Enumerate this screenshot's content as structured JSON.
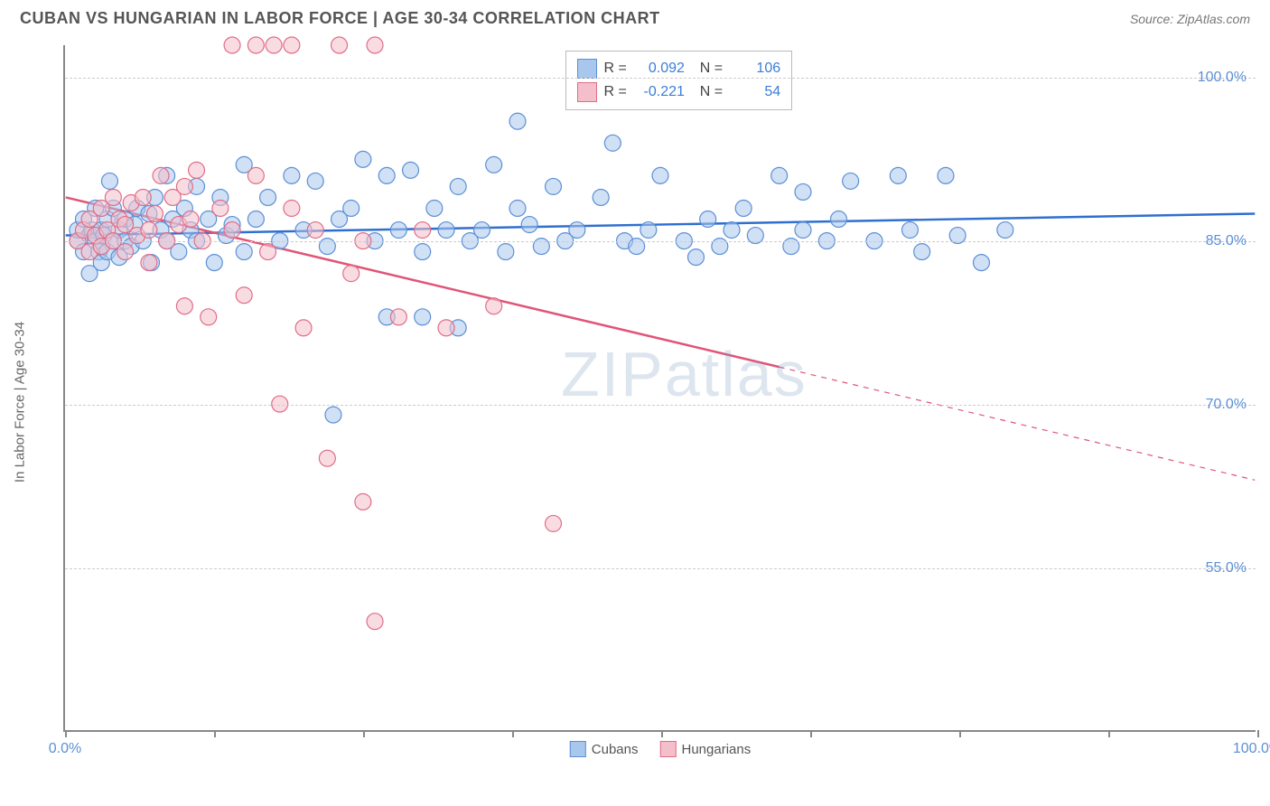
{
  "header": {
    "title": "CUBAN VS HUNGARIAN IN LABOR FORCE | AGE 30-34 CORRELATION CHART",
    "source": "Source: ZipAtlas.com"
  },
  "watermark": {
    "bold": "ZIP",
    "light": "atlas"
  },
  "chart": {
    "type": "scatter",
    "background_color": "#ffffff",
    "axis_color": "#888888",
    "grid_color": "#cccccc",
    "grid_dashed": true,
    "y_axis_label": "In Labor Force | Age 30-34",
    "label_color": "#666666",
    "label_fontsize": 15,
    "tick_label_color": "#5b8fd6",
    "tick_label_fontsize": 16,
    "xlim": [
      0,
      100
    ],
    "ylim": [
      40,
      103
    ],
    "x_ticks": [
      0,
      12.5,
      25,
      37.5,
      50,
      62.5,
      75,
      87.5,
      100
    ],
    "x_tick_labels": {
      "0": "0.0%",
      "100": "100.0%"
    },
    "y_ticks": [
      55,
      70,
      85,
      100
    ],
    "y_tick_labels": {
      "55": "55.0%",
      "70": "70.0%",
      "85": "85.0%",
      "100": "100.0%"
    },
    "marker_radius": 9,
    "marker_opacity": 0.55,
    "line_width": 2.5,
    "series": [
      {
        "name": "Cubans",
        "fill": "#a9c7ec",
        "stroke": "#5b8fd6",
        "line_color": "#2f6fd0",
        "R": "0.092",
        "N": "106",
        "trend": {
          "x1": 0,
          "y1": 85.5,
          "x2": 100,
          "y2": 87.5,
          "solid_until_x": 100
        },
        "points": [
          [
            1,
            85
          ],
          [
            1,
            86
          ],
          [
            1.5,
            84
          ],
          [
            1.5,
            87
          ],
          [
            2,
            85.5
          ],
          [
            2,
            82
          ],
          [
            2.2,
            86
          ],
          [
            2.5,
            85
          ],
          [
            2.5,
            88
          ],
          [
            2.8,
            84
          ],
          [
            3,
            86
          ],
          [
            3,
            83
          ],
          [
            3.2,
            85.5
          ],
          [
            3.5,
            87
          ],
          [
            3.5,
            84
          ],
          [
            3.7,
            90.5
          ],
          [
            4,
            85
          ],
          [
            4,
            88
          ],
          [
            4.5,
            86
          ],
          [
            4.5,
            83.5
          ],
          [
            5,
            87
          ],
          [
            5,
            85
          ],
          [
            5.5,
            84.5
          ],
          [
            5.8,
            86.5
          ],
          [
            6,
            88
          ],
          [
            6.5,
            85
          ],
          [
            7,
            87.5
          ],
          [
            7.2,
            83
          ],
          [
            7.5,
            89
          ],
          [
            8,
            86
          ],
          [
            8.5,
            91
          ],
          [
            8.5,
            85
          ],
          [
            9,
            87
          ],
          [
            9.5,
            84
          ],
          [
            10,
            88
          ],
          [
            10.5,
            86
          ],
          [
            11,
            90
          ],
          [
            11,
            85
          ],
          [
            12,
            87
          ],
          [
            12.5,
            83
          ],
          [
            13,
            89
          ],
          [
            13.5,
            85.5
          ],
          [
            14,
            86.5
          ],
          [
            15,
            92
          ],
          [
            15,
            84
          ],
          [
            16,
            87
          ],
          [
            17,
            89
          ],
          [
            18,
            85
          ],
          [
            19,
            91
          ],
          [
            20,
            86
          ],
          [
            21,
            90.5
          ],
          [
            22,
            84.5
          ],
          [
            22.5,
            69
          ],
          [
            23,
            87
          ],
          [
            24,
            88
          ],
          [
            25,
            92.5
          ],
          [
            26,
            85
          ],
          [
            27,
            78
          ],
          [
            27,
            91
          ],
          [
            28,
            86
          ],
          [
            29,
            91.5
          ],
          [
            30,
            84
          ],
          [
            30,
            78
          ],
          [
            31,
            88
          ],
          [
            32,
            86
          ],
          [
            33,
            90
          ],
          [
            33,
            77
          ],
          [
            34,
            85
          ],
          [
            35,
            86
          ],
          [
            36,
            92
          ],
          [
            37,
            84
          ],
          [
            38,
            88
          ],
          [
            38,
            96
          ],
          [
            39,
            86.5
          ],
          [
            40,
            84.5
          ],
          [
            41,
            90
          ],
          [
            42,
            85
          ],
          [
            43,
            86
          ],
          [
            45,
            89
          ],
          [
            46,
            94
          ],
          [
            47,
            85
          ],
          [
            48,
            84.5
          ],
          [
            49,
            86
          ],
          [
            50,
            91
          ],
          [
            52,
            85
          ],
          [
            53,
            83.5
          ],
          [
            54,
            87
          ],
          [
            55,
            84.5
          ],
          [
            56,
            86
          ],
          [
            57,
            88
          ],
          [
            58,
            85.5
          ],
          [
            60,
            91
          ],
          [
            61,
            84.5
          ],
          [
            62,
            89.5
          ],
          [
            62,
            86
          ],
          [
            64,
            85
          ],
          [
            65,
            87
          ],
          [
            66,
            90.5
          ],
          [
            68,
            85
          ],
          [
            70,
            91
          ],
          [
            71,
            86
          ],
          [
            72,
            84
          ],
          [
            74,
            91
          ],
          [
            75,
            85.5
          ],
          [
            77,
            83
          ],
          [
            79,
            86
          ]
        ]
      },
      {
        "name": "Hungarians",
        "fill": "#f4bfca",
        "stroke": "#e06d88",
        "line_color": "#e05577",
        "R": "-0.221",
        "N": "54",
        "trend": {
          "x1": 0,
          "y1": 89,
          "x2": 100,
          "y2": 63,
          "solid_until_x": 60
        },
        "points": [
          [
            1,
            85
          ],
          [
            1.5,
            86
          ],
          [
            2,
            84
          ],
          [
            2,
            87
          ],
          [
            2.5,
            85.5
          ],
          [
            3,
            88
          ],
          [
            3,
            84.5
          ],
          [
            3.5,
            86
          ],
          [
            4,
            85
          ],
          [
            4,
            89
          ],
          [
            4.5,
            87
          ],
          [
            5,
            86.5
          ],
          [
            5,
            84
          ],
          [
            5.5,
            88.5
          ],
          [
            6,
            85.5
          ],
          [
            6.5,
            89
          ],
          [
            7,
            86
          ],
          [
            7,
            83
          ],
          [
            7.5,
            87.5
          ],
          [
            8,
            91
          ],
          [
            8.5,
            85
          ],
          [
            9,
            89
          ],
          [
            9.5,
            86.5
          ],
          [
            10,
            90
          ],
          [
            10,
            79
          ],
          [
            10.5,
            87
          ],
          [
            11,
            91.5
          ],
          [
            11.5,
            85
          ],
          [
            12,
            78
          ],
          [
            13,
            88
          ],
          [
            14,
            86
          ],
          [
            14,
            103
          ],
          [
            15,
            80
          ],
          [
            16,
            91
          ],
          [
            16,
            103
          ],
          [
            17,
            84
          ],
          [
            17.5,
            103
          ],
          [
            18,
            70
          ],
          [
            19,
            88
          ],
          [
            19,
            103
          ],
          [
            20,
            77
          ],
          [
            21,
            86
          ],
          [
            22,
            65
          ],
          [
            23,
            103
          ],
          [
            24,
            82
          ],
          [
            25,
            61
          ],
          [
            25,
            85
          ],
          [
            26,
            50
          ],
          [
            26,
            103
          ],
          [
            28,
            78
          ],
          [
            30,
            86
          ],
          [
            32,
            77
          ],
          [
            36,
            79
          ],
          [
            41,
            59
          ]
        ]
      }
    ],
    "legend_bottom": [
      {
        "label": "Cubans",
        "fill": "#a9c7ec",
        "stroke": "#5b8fd6"
      },
      {
        "label": "Hungarians",
        "fill": "#f4bfca",
        "stroke": "#e06d88"
      }
    ]
  }
}
